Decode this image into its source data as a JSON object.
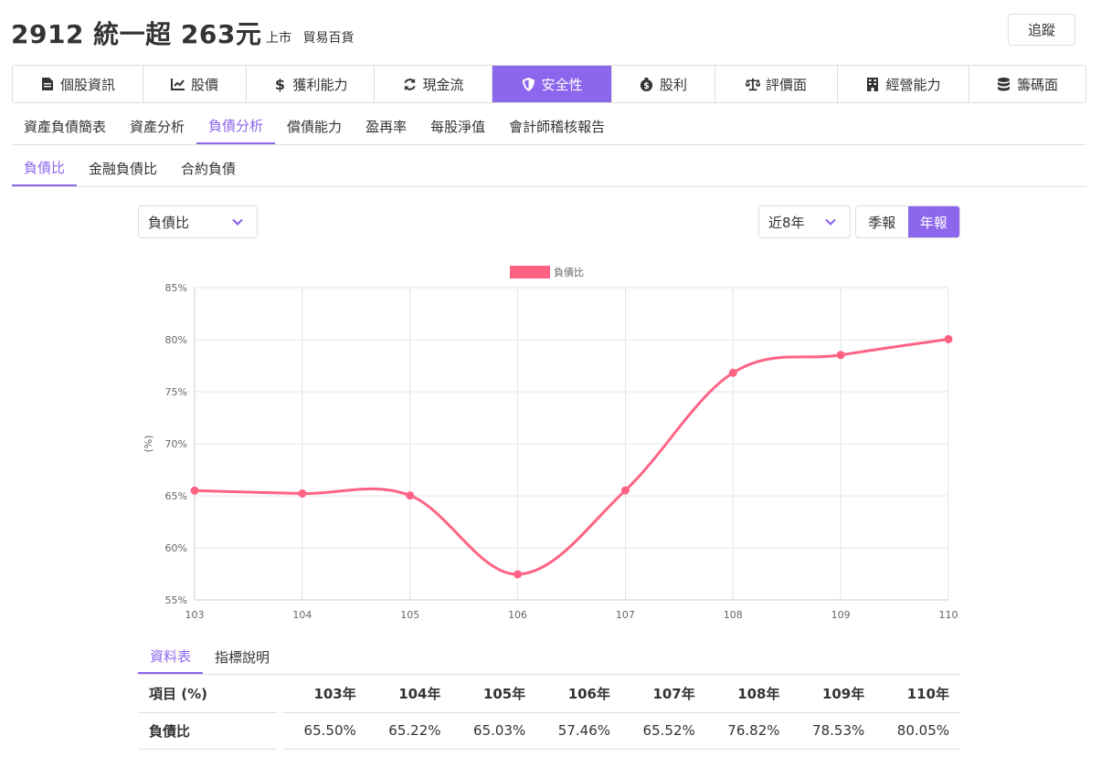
{
  "header": {
    "title": "2912 統一超 263元",
    "market": "上市",
    "industry": "貿易百貨",
    "track_label": "追蹤"
  },
  "main_tabs": [
    {
      "label": "個股資訊",
      "icon": "file-icon"
    },
    {
      "label": "股價",
      "icon": "chart-line-icon"
    },
    {
      "label": "獲利能力",
      "icon": "dollar-icon"
    },
    {
      "label": "現金流",
      "icon": "sync-icon"
    },
    {
      "label": "安全性",
      "icon": "shield-icon"
    },
    {
      "label": "股利",
      "icon": "money-bag-icon"
    },
    {
      "label": "評價面",
      "icon": "balance-scale-icon"
    },
    {
      "label": "經營能力",
      "icon": "building-icon"
    },
    {
      "label": "籌碼面",
      "icon": "database-icon"
    }
  ],
  "main_tab_active": "安全性",
  "sub_tabs": [
    "資產負債簡表",
    "資產分析",
    "負債分析",
    "償債能力",
    "盈再率",
    "每股淨值",
    "會計師稽核報告"
  ],
  "sub_tab_active": "負債分析",
  "sub2_tabs": [
    "負債比",
    "金融負債比",
    "合約負債"
  ],
  "sub2_tab_active": "負債比",
  "controls": {
    "metric_value": "負債比",
    "range_value": "近8年",
    "period_quarter": "季報",
    "period_year": "年報",
    "period_active": "年報"
  },
  "colors": {
    "accent": "#8c66ec",
    "series": "#ff6384"
  },
  "chart_data": {
    "type": "line",
    "x": [
      "103",
      "104",
      "105",
      "106",
      "107",
      "108",
      "109",
      "110"
    ],
    "series": [
      {
        "name": "負債比",
        "values": [
          65.5,
          65.22,
          65.03,
          57.46,
          65.52,
          76.82,
          78.53,
          80.05
        ]
      }
    ],
    "ylabel": "(%)",
    "ylim": [
      55,
      85
    ],
    "yticks": [
      "85%",
      "80%",
      "75%",
      "70%",
      "65%",
      "60%",
      "55%"
    ],
    "grid": true,
    "legend": "top"
  },
  "table": {
    "tabs": [
      "資料表",
      "指標說明"
    ],
    "active_tab": "資料表",
    "header_first": "項目 (%)",
    "years": [
      "103年",
      "104年",
      "105年",
      "106年",
      "107年",
      "108年",
      "109年",
      "110年"
    ],
    "rows": [
      {
        "label": "負債比",
        "values": [
          "65.50%",
          "65.22%",
          "65.03%",
          "57.46%",
          "65.52%",
          "76.82%",
          "78.53%",
          "80.05%"
        ]
      }
    ]
  }
}
